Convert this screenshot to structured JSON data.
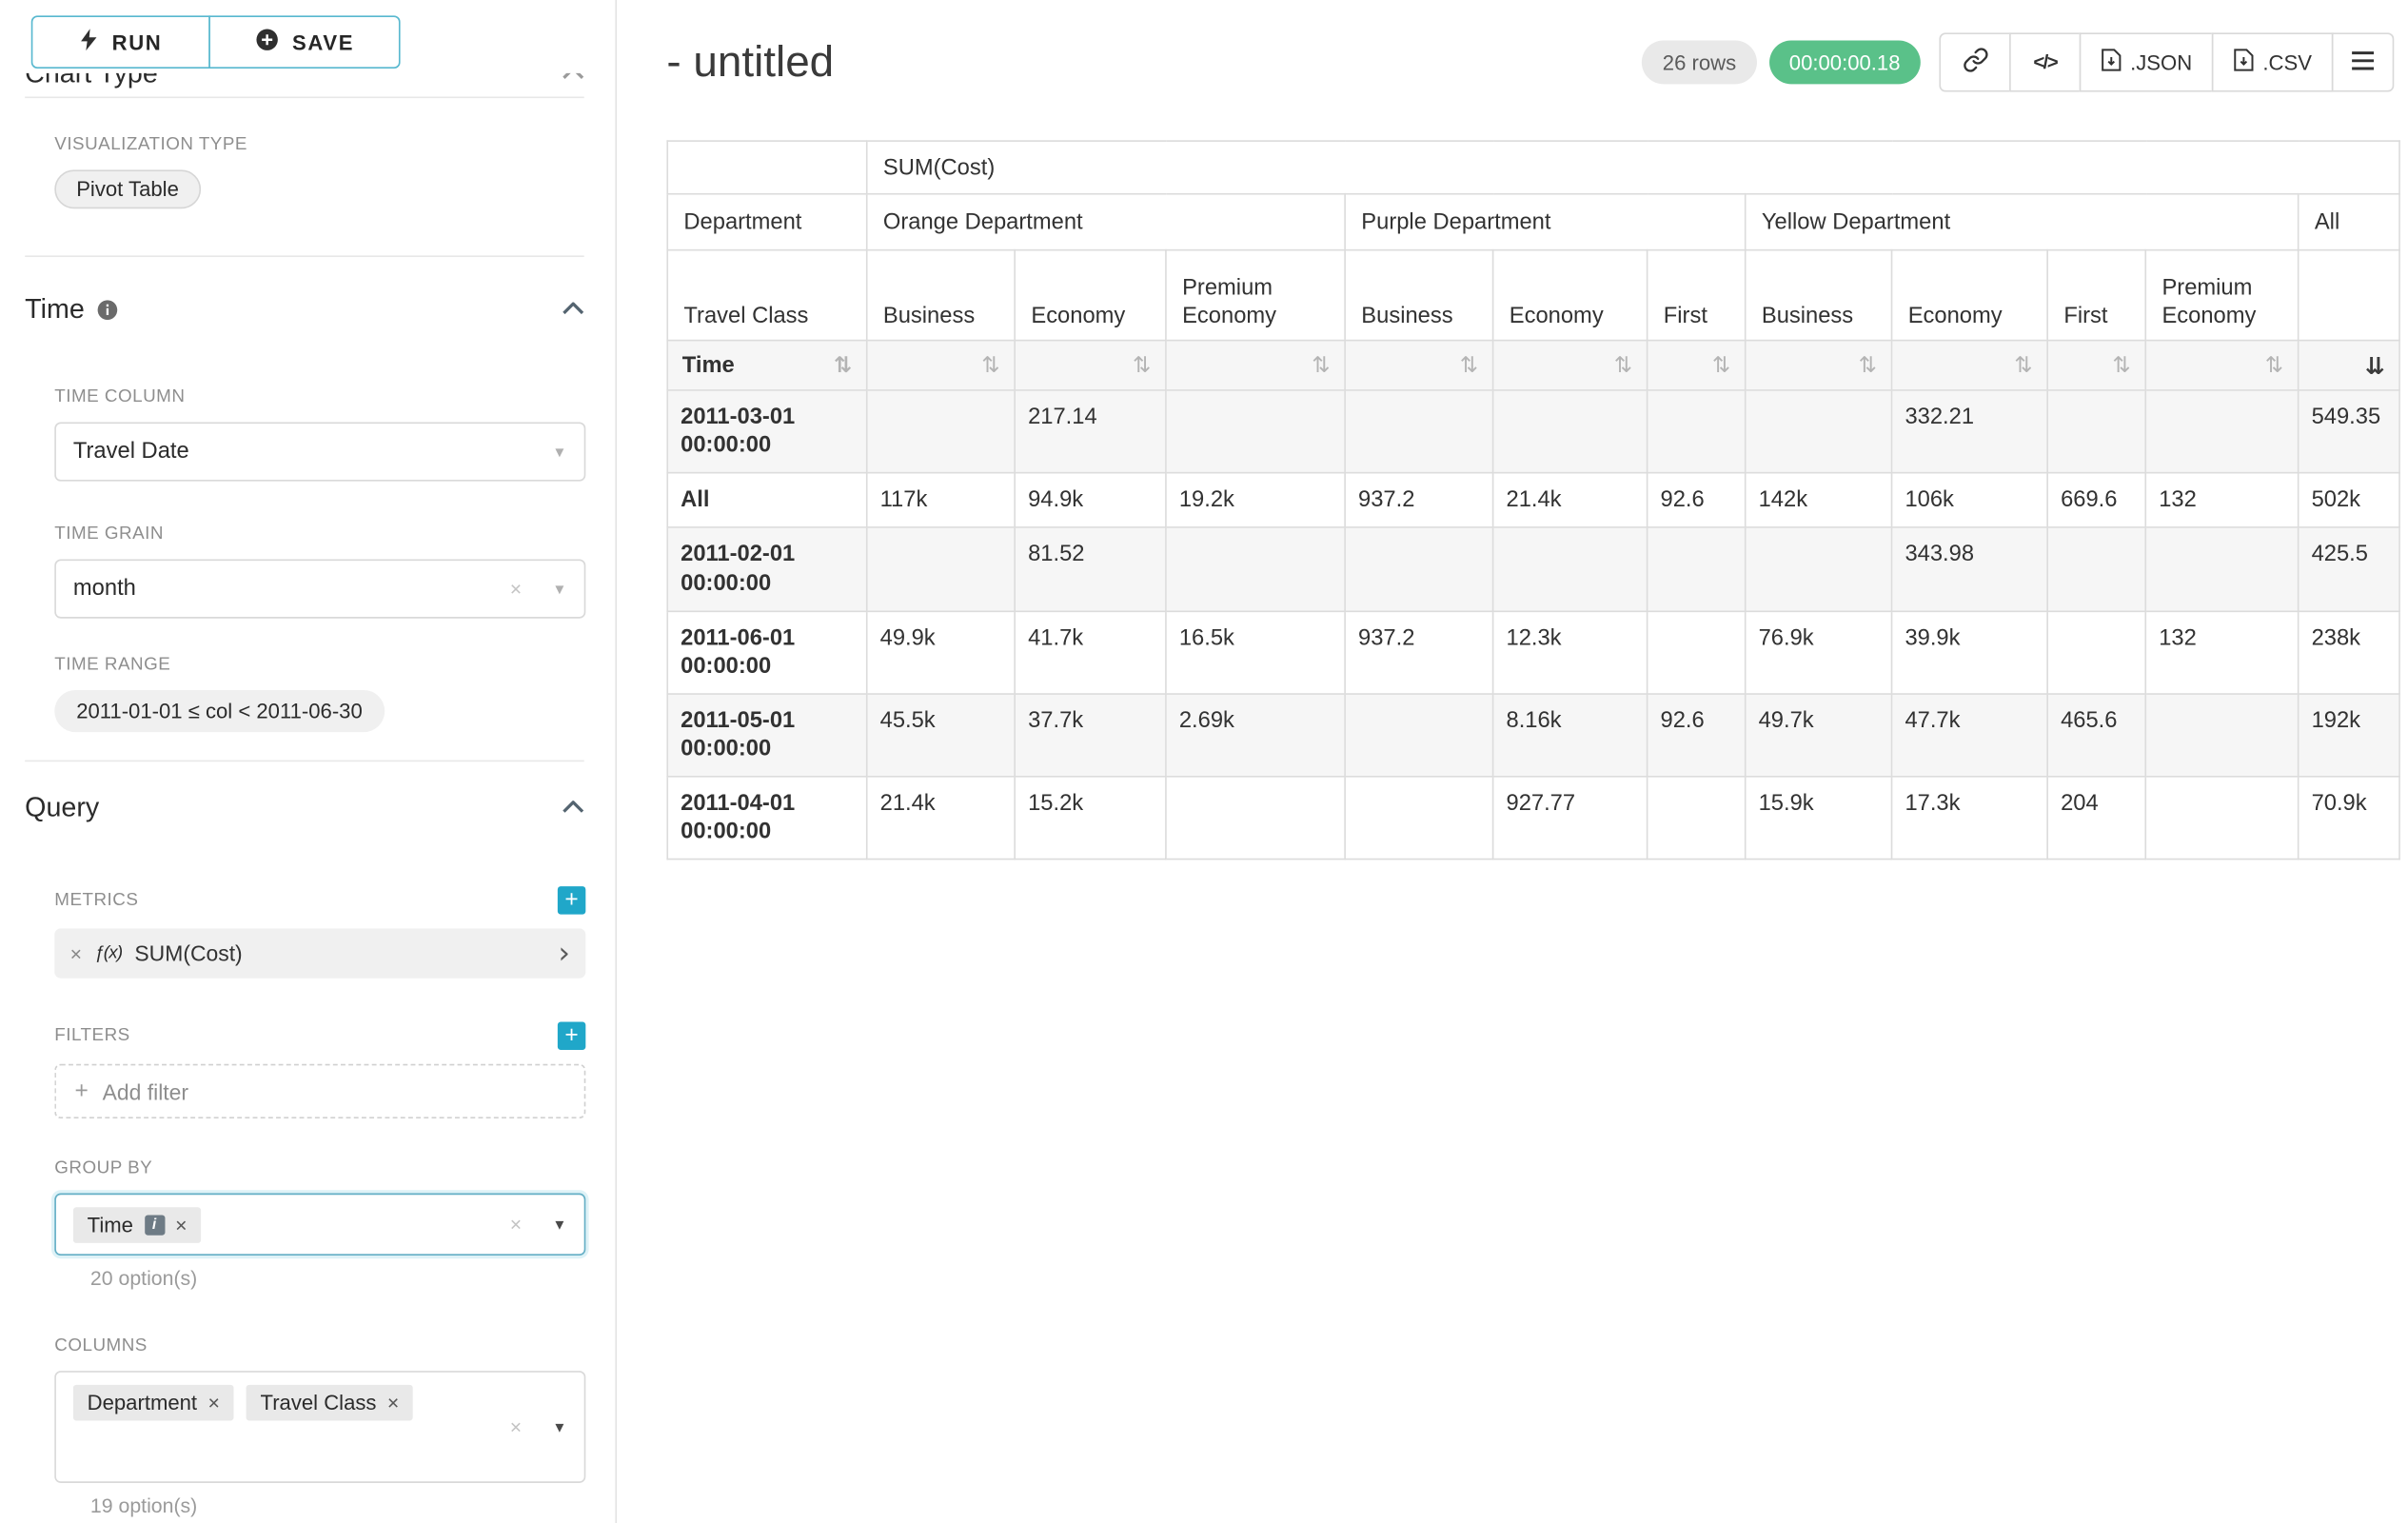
{
  "colors": {
    "accent": "#20a7c9",
    "success": "#5ac189"
  },
  "icons": {
    "close": "×",
    "caret_down": "▾",
    "chevron_right": "›",
    "plus": "+",
    "code_glyph": "</>",
    "sort": "⇅",
    "sort_desc": "⇊"
  },
  "sidebar": {
    "run_button": "RUN",
    "save_button": "SAVE",
    "chart_type_heading": "Chart Type",
    "visualization_type_label": "VISUALIZATION TYPE",
    "visualization_type_value": "Pivot Table",
    "time": {
      "heading": "Time",
      "time_column_label": "TIME COLUMN",
      "time_column_value": "Travel Date",
      "time_grain_label": "TIME GRAIN",
      "time_grain_value": "month",
      "time_range_label": "TIME RANGE",
      "time_range_value": "2011-01-01 ≤ col < 2011-06-30"
    },
    "query": {
      "heading": "Query",
      "metrics_label": "METRICS",
      "metric_fx": "ƒ(x)",
      "metric_value": "SUM(Cost)",
      "filters_label": "FILTERS",
      "add_filter_label": "Add filter",
      "group_by_label": "GROUP BY",
      "group_by_tags": [
        "Time"
      ],
      "group_by_options_hint": "20 option(s)",
      "columns_label": "COLUMNS",
      "columns_tags": [
        "Department",
        "Travel Class"
      ],
      "columns_options_hint": "19 option(s)"
    }
  },
  "main": {
    "title": "- untitled",
    "rows_badge": "26 rows",
    "timer_badge": "00:00:00.18",
    "json_button": ".JSON",
    "csv_button": ".CSV"
  },
  "chart_data": {
    "type": "table",
    "title": "SUM(Cost)",
    "row_dimension": "Time",
    "column_dimensions": [
      "Department",
      "Travel Class"
    ],
    "column_groups": [
      {
        "label": "Orange Department",
        "columns": [
          "Business",
          "Economy",
          "Premium Economy"
        ]
      },
      {
        "label": "Purple Department",
        "columns": [
          "Business",
          "Economy",
          "First"
        ]
      },
      {
        "label": "Yellow Department",
        "columns": [
          "Business",
          "Economy",
          "First",
          "Premium Economy"
        ]
      },
      {
        "label": "All",
        "columns": [
          ""
        ]
      }
    ],
    "rows": [
      {
        "label": "2011-03-01 00:00:00",
        "values": [
          "",
          "217.14",
          "",
          "",
          "",
          "",
          "",
          "332.21",
          "",
          "",
          "549.35"
        ]
      },
      {
        "label": "All",
        "values": [
          "117k",
          "94.9k",
          "19.2k",
          "937.2",
          "21.4k",
          "92.6",
          "142k",
          "106k",
          "669.6",
          "132",
          "502k"
        ]
      },
      {
        "label": "2011-02-01 00:00:00",
        "values": [
          "",
          "81.52",
          "",
          "",
          "",
          "",
          "",
          "343.98",
          "",
          "",
          "425.5"
        ]
      },
      {
        "label": "2011-06-01 00:00:00",
        "values": [
          "49.9k",
          "41.7k",
          "16.5k",
          "937.2",
          "12.3k",
          "",
          "76.9k",
          "39.9k",
          "",
          "132",
          "238k"
        ]
      },
      {
        "label": "2011-05-01 00:00:00",
        "values": [
          "45.5k",
          "37.7k",
          "2.69k",
          "",
          "8.16k",
          "92.6",
          "49.7k",
          "47.7k",
          "465.6",
          "",
          "192k"
        ]
      },
      {
        "label": "2011-04-01 00:00:00",
        "values": [
          "21.4k",
          "15.2k",
          "",
          "",
          "927.77",
          "",
          "15.9k",
          "17.3k",
          "204",
          "",
          "70.9k"
        ]
      }
    ],
    "sorted_column": "All",
    "sort_direction": "desc"
  }
}
